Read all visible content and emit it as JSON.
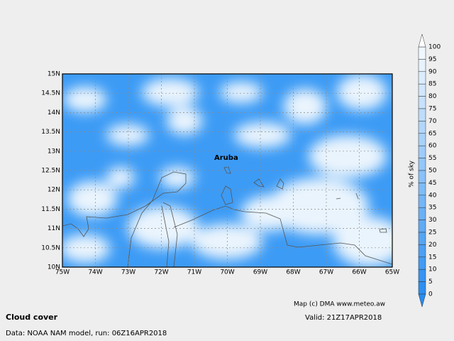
{
  "map": {
    "title": "Cloud cover",
    "valid": "Valid: 21Z17APR2018",
    "source": "Data: NOAA NAM model, run: 06Z16APR2018",
    "credit": "Map (c) DMA www.meteo.aw",
    "place": "Aruba",
    "lat_labels": [
      "15N",
      "14.5N",
      "14N",
      "13.5N",
      "13N",
      "12.5N",
      "12N",
      "11.5N",
      "11N",
      "10.5N",
      "10N"
    ],
    "lon_labels": [
      "75W",
      "74W",
      "73W",
      "72W",
      "71W",
      "70W",
      "69W",
      "68W",
      "67W",
      "66W",
      "65W"
    ]
  },
  "colorbar": {
    "label": "% of sky",
    "ticks": [
      100,
      95,
      90,
      85,
      80,
      75,
      70,
      65,
      60,
      55,
      50,
      45,
      40,
      35,
      30,
      25,
      20,
      15,
      10,
      5,
      0
    ]
  }
}
